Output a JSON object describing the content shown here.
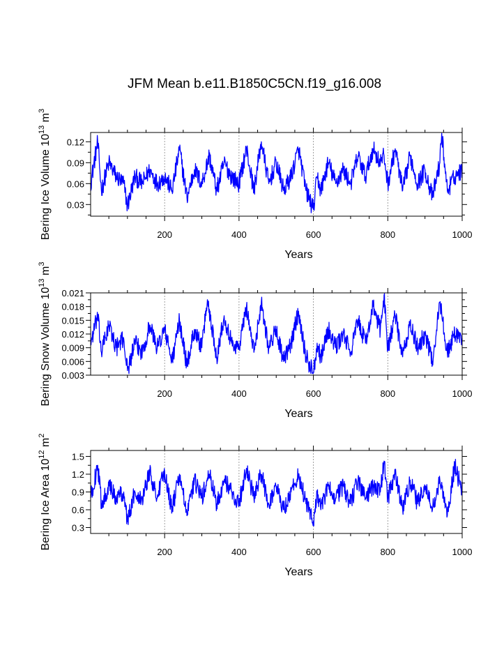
{
  "title": "JFM Mean b.e11.B1850C5CN.f19_g16.008",
  "colors": {
    "series": "#0000ff",
    "axis": "#000000",
    "grid": "#888888"
  },
  "chart_data": [
    {
      "type": "line",
      "ylabel_main": "Bering Ice Volume 10",
      "ylabel_exp": "13",
      "ylabel_unit": " m",
      "ylabel_unit_exp": "3",
      "xlabel": "Years",
      "xlim": [
        1,
        1000
      ],
      "ylim": [
        0.0133,
        0.1333
      ],
      "xticks": [
        200,
        400,
        600,
        800,
        1000
      ],
      "xtick_labels": [
        "200",
        "400",
        "600",
        "800",
        "1000"
      ],
      "yticks": [
        0.03,
        0.06,
        0.09,
        0.12
      ],
      "ytick_labels": [
        "0.03",
        "0.06",
        "0.09",
        "0.12"
      ],
      "grid_x": [
        200,
        400,
        600,
        800
      ],
      "series": {
        "name": "Bering Ice Volume",
        "x": [
          1,
          20,
          30,
          50,
          70,
          90,
          100,
          120,
          140,
          160,
          180,
          200,
          220,
          240,
          260,
          280,
          300,
          320,
          340,
          360,
          380,
          400,
          420,
          440,
          460,
          480,
          500,
          520,
          540,
          560,
          580,
          600,
          610,
          620,
          640,
          660,
          680,
          700,
          720,
          740,
          760,
          780,
          790,
          800,
          820,
          840,
          860,
          880,
          900,
          920,
          940,
          945,
          960,
          980,
          1000
        ],
        "y": [
          0.06,
          0.12,
          0.05,
          0.09,
          0.07,
          0.06,
          0.028,
          0.07,
          0.06,
          0.08,
          0.06,
          0.07,
          0.05,
          0.11,
          0.04,
          0.08,
          0.06,
          0.1,
          0.05,
          0.09,
          0.07,
          0.06,
          0.11,
          0.05,
          0.12,
          0.06,
          0.09,
          0.05,
          0.07,
          0.11,
          0.05,
          0.023,
          0.07,
          0.05,
          0.09,
          0.06,
          0.08,
          0.06,
          0.1,
          0.07,
          0.11,
          0.09,
          0.1,
          0.06,
          0.11,
          0.05,
          0.1,
          0.06,
          0.08,
          0.04,
          0.09,
          0.132,
          0.05,
          0.07,
          0.08
        ]
      }
    },
    {
      "type": "line",
      "ylabel_main": "Bering Snow Volume 10",
      "ylabel_exp": "13",
      "ylabel_unit": " m",
      "ylabel_unit_exp": "3",
      "xlabel": "Years",
      "xlim": [
        1,
        1000
      ],
      "ylim": [
        0.003,
        0.021
      ],
      "xticks": [
        200,
        400,
        600,
        800,
        1000
      ],
      "xtick_labels": [
        "200",
        "400",
        "600",
        "800",
        "1000"
      ],
      "yticks": [
        0.003,
        0.006,
        0.009,
        0.012,
        0.015,
        0.018,
        0.021
      ],
      "ytick_labels": [
        "0.003",
        "0.006",
        "0.009",
        "0.012",
        "0.015",
        "0.018",
        "0.021"
      ],
      "grid_x": [
        200,
        400,
        600,
        800
      ],
      "series": {
        "name": "Bering Snow Volume",
        "x": [
          1,
          20,
          30,
          50,
          70,
          90,
          100,
          120,
          140,
          160,
          180,
          200,
          220,
          240,
          260,
          280,
          300,
          315,
          340,
          360,
          380,
          400,
          420,
          440,
          460,
          480,
          500,
          520,
          540,
          560,
          580,
          600,
          610,
          620,
          640,
          660,
          680,
          700,
          720,
          740,
          760,
          780,
          790,
          800,
          820,
          840,
          860,
          880,
          900,
          920,
          940,
          960,
          980,
          1000
        ],
        "y": [
          0.01,
          0.016,
          0.008,
          0.014,
          0.009,
          0.011,
          0.004,
          0.01,
          0.008,
          0.014,
          0.009,
          0.013,
          0.006,
          0.015,
          0.005,
          0.013,
          0.009,
          0.0195,
          0.007,
          0.016,
          0.01,
          0.009,
          0.018,
          0.008,
          0.019,
          0.009,
          0.013,
          0.006,
          0.01,
          0.017,
          0.007,
          0.0035,
          0.01,
          0.007,
          0.013,
          0.009,
          0.012,
          0.008,
          0.015,
          0.01,
          0.018,
          0.013,
          0.0205,
          0.009,
          0.016,
          0.007,
          0.014,
          0.009,
          0.012,
          0.006,
          0.019,
          0.008,
          0.012,
          0.011
        ]
      }
    },
    {
      "type": "line",
      "ylabel_main": "Bering Ice Area 10",
      "ylabel_exp": "12",
      "ylabel_unit": " m",
      "ylabel_unit_exp": "2",
      "xlabel": "Years",
      "xlim": [
        1,
        1000
      ],
      "ylim": [
        0.2,
        1.6
      ],
      "xticks": [
        200,
        400,
        600,
        800,
        1000
      ],
      "xtick_labels": [
        "200",
        "400",
        "600",
        "800",
        "1000"
      ],
      "yticks": [
        0.3,
        0.6,
        0.9,
        1.2,
        1.5
      ],
      "ytick_labels": [
        "0.3",
        "0.6",
        "0.9",
        "1.2",
        "1.5"
      ],
      "grid_x": [
        200,
        400,
        600,
        800
      ],
      "series": {
        "name": "Bering Ice Area",
        "x": [
          1,
          20,
          30,
          50,
          70,
          90,
          100,
          120,
          140,
          160,
          180,
          200,
          220,
          240,
          260,
          280,
          300,
          320,
          340,
          360,
          380,
          400,
          420,
          440,
          460,
          480,
          500,
          520,
          540,
          560,
          580,
          600,
          610,
          620,
          640,
          660,
          680,
          700,
          720,
          740,
          760,
          780,
          790,
          800,
          820,
          840,
          860,
          880,
          900,
          920,
          940,
          960,
          980,
          1000
        ],
        "y": [
          0.8,
          1.35,
          0.7,
          1.0,
          0.8,
          0.9,
          0.4,
          0.9,
          0.8,
          1.25,
          0.8,
          1.25,
          0.6,
          1.2,
          0.5,
          1.1,
          0.8,
          1.2,
          0.7,
          1.1,
          0.9,
          0.7,
          1.3,
          0.8,
          1.2,
          0.7,
          1.0,
          0.6,
          0.9,
          1.2,
          0.7,
          0.4,
          0.9,
          0.6,
          1.0,
          0.8,
          1.0,
          0.7,
          1.1,
          0.8,
          1.0,
          0.9,
          1.42,
          0.8,
          1.2,
          0.6,
          1.1,
          0.7,
          1.0,
          0.6,
          1.1,
          0.5,
          1.35,
          0.9
        ]
      }
    }
  ]
}
